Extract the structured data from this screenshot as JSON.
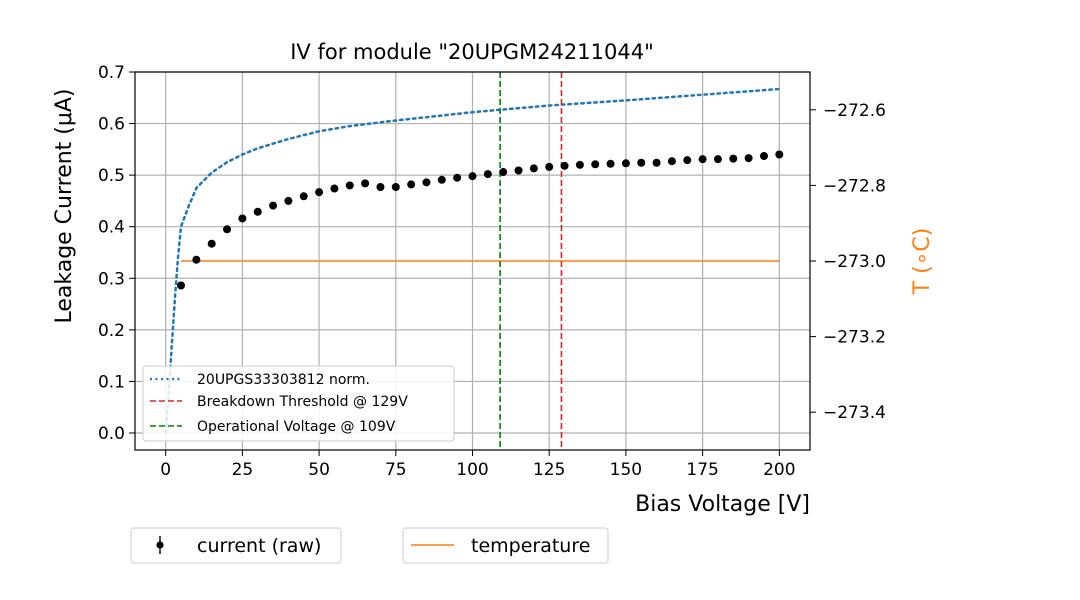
{
  "chart_data": {
    "type": "scatter",
    "title": "IV for module \"20UPGM24211044\"",
    "xlabel": "Bias Voltage [V]",
    "ylabel": "Leakage Current (μA)",
    "ylabel_right": "T ($^\\circ$C)",
    "ylabel_right_display": "T (∘C)",
    "xlim": [
      -10,
      210
    ],
    "ylim": [
      -0.033,
      0.7
    ],
    "ylim_right": [
      -273.5,
      -272.5
    ],
    "x_ticks": [
      0,
      25,
      50,
      75,
      100,
      125,
      150,
      175,
      200
    ],
    "y_ticks": [
      "0.0",
      "0.1",
      "0.2",
      "0.3",
      "0.4",
      "0.5",
      "0.6",
      "0.7"
    ],
    "y_right_ticks": [
      "−273.4",
      "−273.2",
      "−273.0",
      "−272.8",
      "−272.6"
    ],
    "y_right_tick_values": [
      -273.4,
      -273.2,
      -273.0,
      -272.8,
      -272.6
    ],
    "grid": true,
    "current_raw": {
      "name": "current (raw)",
      "color": "#000000",
      "x": [
        5,
        10,
        15,
        20,
        25,
        30,
        35,
        40,
        45,
        50,
        55,
        60,
        65,
        70,
        75,
        80,
        85,
        90,
        95,
        100,
        105,
        110,
        115,
        120,
        125,
        130,
        135,
        140,
        145,
        150,
        155,
        160,
        165,
        170,
        175,
        180,
        185,
        190,
        195,
        200
      ],
      "y": [
        0.286,
        0.336,
        0.367,
        0.395,
        0.416,
        0.429,
        0.441,
        0.45,
        0.459,
        0.467,
        0.474,
        0.48,
        0.484,
        0.477,
        0.477,
        0.482,
        0.486,
        0.491,
        0.495,
        0.498,
        0.502,
        0.506,
        0.509,
        0.513,
        0.516,
        0.518,
        0.52,
        0.521,
        0.522,
        0.523,
        0.524,
        0.524,
        0.527,
        0.529,
        0.531,
        0.531,
        0.532,
        0.533,
        0.537,
        0.54
      ]
    },
    "reference": {
      "name": "20UPGS33303812 norm.",
      "color": "#1f77b4",
      "x": [
        0,
        1,
        2,
        3,
        4,
        5,
        7.5,
        10,
        15,
        20,
        25,
        30,
        40,
        50,
        60,
        75,
        100,
        125,
        150,
        175,
        200
      ],
      "y": [
        0.0,
        0.08,
        0.17,
        0.26,
        0.34,
        0.4,
        0.44,
        0.475,
        0.505,
        0.525,
        0.54,
        0.552,
        0.57,
        0.585,
        0.595,
        0.606,
        0.622,
        0.635,
        0.645,
        0.656,
        0.667
      ]
    },
    "temperature": {
      "name": "temperature",
      "color": "#ff7f0e",
      "x": [
        5,
        200
      ],
      "y": [
        -273.0,
        -273.0
      ]
    },
    "breakdown": {
      "label": "Breakdown Threshold @ 129V",
      "x": 129,
      "color": "#d62728"
    },
    "operational": {
      "label": "Operational Voltage @ 109V",
      "x": 109,
      "color": "#008000"
    },
    "legend_inner": [
      "20UPGS33303812 norm.",
      "Breakdown Threshold @ 129V",
      "Operational Voltage @ 109V"
    ],
    "legend_inner_position": "lower-left",
    "legend_outer": [
      "current (raw)",
      "temperature"
    ],
    "legend_outer_position": "below"
  }
}
